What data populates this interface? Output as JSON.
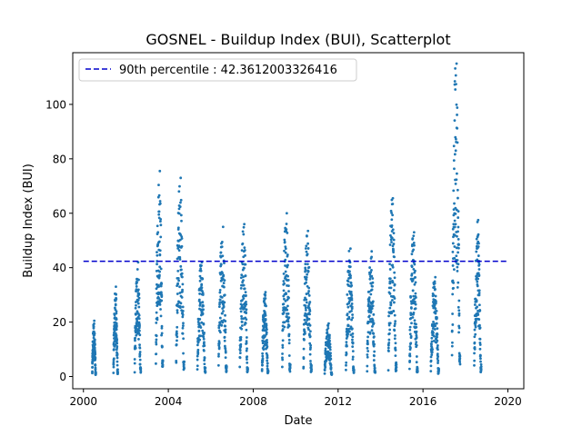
{
  "chart_data": {
    "type": "scatter",
    "title": "GOSNEL - Buildup Index (BUI), Scatterplot",
    "xlabel": "Date",
    "ylabel": "Buildup Index (BUI)",
    "xlim": [
      "1999-07-01",
      "2020-10-01"
    ],
    "ylim": [
      -4.5,
      119
    ],
    "x_ticks": [
      "2000",
      "2004",
      "2008",
      "2012",
      "2016",
      "2020"
    ],
    "y_ticks": [
      0,
      20,
      40,
      60,
      80,
      100
    ],
    "legend": {
      "label": "90th percentile : 42.3612003326416",
      "placement": "top-left"
    },
    "reference_line": {
      "value": 42.3612003326416,
      "x_start": "2000-01-01",
      "x_end": "2020-01-01",
      "style": "dashed",
      "color": "#0000cc"
    },
    "marker_color": "#1f77b4",
    "seasons": [
      {
        "year": 2000,
        "start": "2000-06-01",
        "end": "2000-08-01",
        "peak": 20.5
      },
      {
        "year": 2001,
        "start": "2001-06-01",
        "end": "2001-08-15",
        "peak": 33
      },
      {
        "year": 2002,
        "start": "2002-06-01",
        "end": "2002-09-15",
        "peak": 42
      },
      {
        "year": 2003,
        "start": "2003-06-01",
        "end": "2003-09-30",
        "peak": 75.5
      },
      {
        "year": 2004,
        "start": "2004-05-15",
        "end": "2004-10-01",
        "peak": 73
      },
      {
        "year": 2005,
        "start": "2005-05-15",
        "end": "2005-10-01",
        "peak": 42
      },
      {
        "year": 2006,
        "start": "2006-05-15",
        "end": "2006-10-01",
        "peak": 55
      },
      {
        "year": 2007,
        "start": "2007-05-15",
        "end": "2007-09-30",
        "peak": 56
      },
      {
        "year": 2008,
        "start": "2008-06-01",
        "end": "2008-09-15",
        "peak": 31
      },
      {
        "year": 2009,
        "start": "2009-05-15",
        "end": "2009-10-01",
        "peak": 60
      },
      {
        "year": 2010,
        "start": "2010-05-15",
        "end": "2010-10-01",
        "peak": 53.5
      },
      {
        "year": 2011,
        "start": "2011-05-15",
        "end": "2011-09-15",
        "peak": 19.5
      },
      {
        "year": 2012,
        "start": "2012-05-15",
        "end": "2012-10-01",
        "peak": 47
      },
      {
        "year": 2013,
        "start": "2013-05-15",
        "end": "2013-10-01",
        "peak": 46
      },
      {
        "year": 2014,
        "start": "2014-05-15",
        "end": "2014-10-01",
        "peak": 65.5
      },
      {
        "year": 2015,
        "start": "2015-05-15",
        "end": "2015-10-01",
        "peak": 53
      },
      {
        "year": 2016,
        "start": "2016-05-15",
        "end": "2016-09-30",
        "peak": 36.5
      },
      {
        "year": 2017,
        "start": "2017-05-15",
        "end": "2017-10-01",
        "peak": 115
      },
      {
        "year": 2018,
        "start": "2018-06-01",
        "end": "2018-09-30",
        "peak": 57.5
      }
    ]
  }
}
